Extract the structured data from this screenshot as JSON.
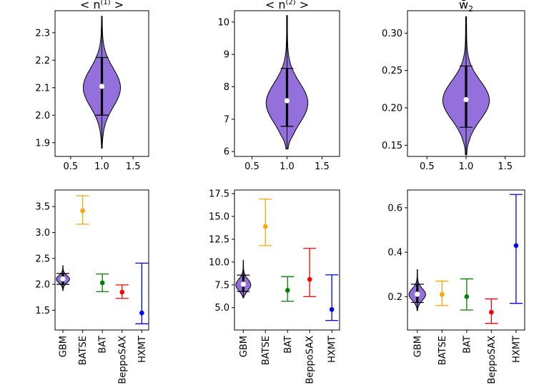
{
  "chart_data": [
    {
      "type": "violin",
      "title": "< n(1) >",
      "title_main": "< n",
      "title_sup": "(1)",
      "title_end": " >",
      "xlim": [
        0.25,
        1.75
      ],
      "ylim": [
        1.85,
        2.38
      ],
      "xticks": [
        0.5,
        1.0,
        1.5
      ],
      "xtick_labels": [
        "0.5",
        "1.0",
        "1.5"
      ],
      "yticks": [
        1.9,
        2.0,
        2.1,
        2.2,
        2.3
      ],
      "ytick_labels": [
        "1.9",
        "2.0",
        "2.1",
        "2.2",
        "2.3"
      ],
      "violin": {
        "position": 1.0,
        "min": 1.88,
        "max": 2.36,
        "q1": 2.0,
        "median": 2.105,
        "q3": 2.21,
        "mode": 2.1,
        "sigma": 0.07
      }
    },
    {
      "type": "violin",
      "title": "< n(2) >",
      "title_main": "< n",
      "title_sup": "(2)",
      "title_end": " >",
      "xlim": [
        0.25,
        1.75
      ],
      "ylim": [
        5.85,
        10.35
      ],
      "xticks": [
        0.5,
        1.0,
        1.5
      ],
      "xtick_labels": [
        "0.5",
        "1.0",
        "1.5"
      ],
      "yticks": [
        6,
        7,
        8,
        9,
        10
      ],
      "ytick_labels": [
        "6",
        "7",
        "8",
        "9",
        "10"
      ],
      "violin": {
        "position": 1.0,
        "min": 6.08,
        "max": 10.2,
        "q1": 6.78,
        "median": 7.57,
        "q3": 8.57,
        "mode": 7.5,
        "sigma": 0.62
      }
    },
    {
      "type": "violin",
      "title": "w̄2",
      "title_main": "w̄",
      "title_sub": "2",
      "xlim": [
        0.25,
        1.75
      ],
      "ylim": [
        0.135,
        0.33
      ],
      "xticks": [
        0.5,
        1.0,
        1.5
      ],
      "xtick_labels": [
        "0.5",
        "1.0",
        "1.5"
      ],
      "yticks": [
        0.15,
        0.2,
        0.25,
        0.3
      ],
      "ytick_labels": [
        "0.15",
        "0.20",
        "0.25",
        "0.30"
      ],
      "violin": {
        "position": 1.0,
        "min": 0.137,
        "max": 0.322,
        "q1": 0.174,
        "median": 0.211,
        "q3": 0.256,
        "mode": 0.21,
        "sigma": 0.026
      }
    },
    {
      "type": "errorbar",
      "categories": [
        "GBM",
        "BATSE",
        "BAT",
        "BeppoSAX",
        "HXMT"
      ],
      "ylim": [
        1.12,
        3.82
      ],
      "yticks": [
        1.5,
        2.0,
        2.5,
        3.0,
        3.5
      ],
      "ytick_labels": [
        "1.5",
        "2.0",
        "2.5",
        "3.0",
        "3.5"
      ],
      "violin": {
        "position": 0,
        "min": 1.88,
        "max": 2.36,
        "q1": 2.0,
        "median": 2.105,
        "q3": 2.21,
        "mode": 2.1,
        "sigma": 0.07
      },
      "series": [
        {
          "name": "GBM",
          "value": 2.1,
          "low": 2.0,
          "high": 2.21,
          "color": "#000000"
        },
        {
          "name": "BATSE",
          "value": 3.42,
          "low": 3.16,
          "high": 3.71,
          "color": "#FFA500"
        },
        {
          "name": "BAT",
          "value": 2.03,
          "low": 1.86,
          "high": 2.2,
          "color": "#008000"
        },
        {
          "name": "BeppoSAX",
          "value": 1.85,
          "low": 1.73,
          "high": 1.99,
          "color": "#FF0000"
        },
        {
          "name": "HXMT",
          "value": 1.45,
          "low": 1.24,
          "high": 2.41,
          "color": "#0000FF"
        }
      ]
    },
    {
      "type": "errorbar",
      "categories": [
        "GBM",
        "BATSE",
        "BAT",
        "BeppoSAX",
        "HXMT"
      ],
      "ylim": [
        2.55,
        17.9
      ],
      "yticks": [
        5.0,
        7.5,
        10.0,
        12.5,
        15.0,
        17.5
      ],
      "ytick_labels": [
        "5.0",
        "7.5",
        "10.0",
        "12.5",
        "15.0",
        "17.5"
      ],
      "violin": {
        "position": 0,
        "min": 6.08,
        "max": 10.2,
        "q1": 6.78,
        "median": 7.57,
        "q3": 8.57,
        "mode": 7.5,
        "sigma": 0.62
      },
      "series": [
        {
          "name": "GBM",
          "value": 7.57,
          "low": 6.78,
          "high": 8.57,
          "color": "#000000"
        },
        {
          "name": "BATSE",
          "value": 13.9,
          "low": 11.8,
          "high": 16.9,
          "color": "#FFA500"
        },
        {
          "name": "BAT",
          "value": 6.9,
          "low": 5.7,
          "high": 8.4,
          "color": "#008000"
        },
        {
          "name": "BeppoSAX",
          "value": 8.1,
          "low": 6.2,
          "high": 11.5,
          "color": "#FF0000"
        },
        {
          "name": "HXMT",
          "value": 4.8,
          "low": 3.6,
          "high": 8.6,
          "color": "#0000FF"
        }
      ]
    },
    {
      "type": "errorbar",
      "categories": [
        "GBM",
        "BATSE",
        "BAT",
        "BeppoSAX",
        "HXMT"
      ],
      "ylim": [
        0.05,
        0.68
      ],
      "yticks": [
        0.2,
        0.4,
        0.6
      ],
      "ytick_labels": [
        "0.2",
        "0.4",
        "0.6"
      ],
      "violin": {
        "position": 0,
        "min": 0.137,
        "max": 0.322,
        "q1": 0.174,
        "median": 0.211,
        "q3": 0.256,
        "mode": 0.21,
        "sigma": 0.026
      },
      "series": [
        {
          "name": "GBM",
          "value": 0.211,
          "low": 0.174,
          "high": 0.256,
          "color": "#000000"
        },
        {
          "name": "BATSE",
          "value": 0.21,
          "low": 0.16,
          "high": 0.27,
          "color": "#FFA500"
        },
        {
          "name": "BAT",
          "value": 0.2,
          "low": 0.14,
          "high": 0.28,
          "color": "#008000"
        },
        {
          "name": "BeppoSAX",
          "value": 0.13,
          "low": 0.08,
          "high": 0.19,
          "color": "#FF0000"
        },
        {
          "name": "HXMT",
          "value": 0.43,
          "low": 0.17,
          "high": 0.66,
          "color": "#0000FF"
        }
      ]
    }
  ]
}
